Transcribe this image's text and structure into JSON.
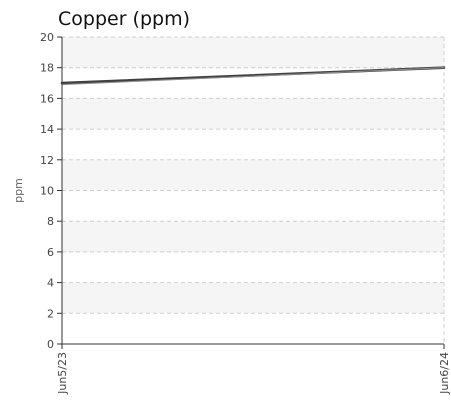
{
  "chart_data": {
    "type": "line",
    "title": "Copper (ppm)",
    "xlabel": "",
    "ylabel": "ppm",
    "x": [
      "Jun5/23",
      "Jun6/24"
    ],
    "xticks": [
      "Jun5/23",
      "Jun6/24"
    ],
    "ylim": [
      0,
      20
    ],
    "yticks": [
      0,
      2,
      4,
      6,
      8,
      10,
      12,
      14,
      16,
      18,
      20
    ],
    "grid": true,
    "series": [
      {
        "values": [
          17.0,
          18.0
        ]
      },
      {
        "values": [
          16.9,
          18.0
        ]
      }
    ]
  },
  "colors": {
    "series": [
      "#3f3f3f",
      "#8c8c8c"
    ],
    "band": "#f5f5f5",
    "grid": "#cfcfcf",
    "axis": "#333333"
  }
}
